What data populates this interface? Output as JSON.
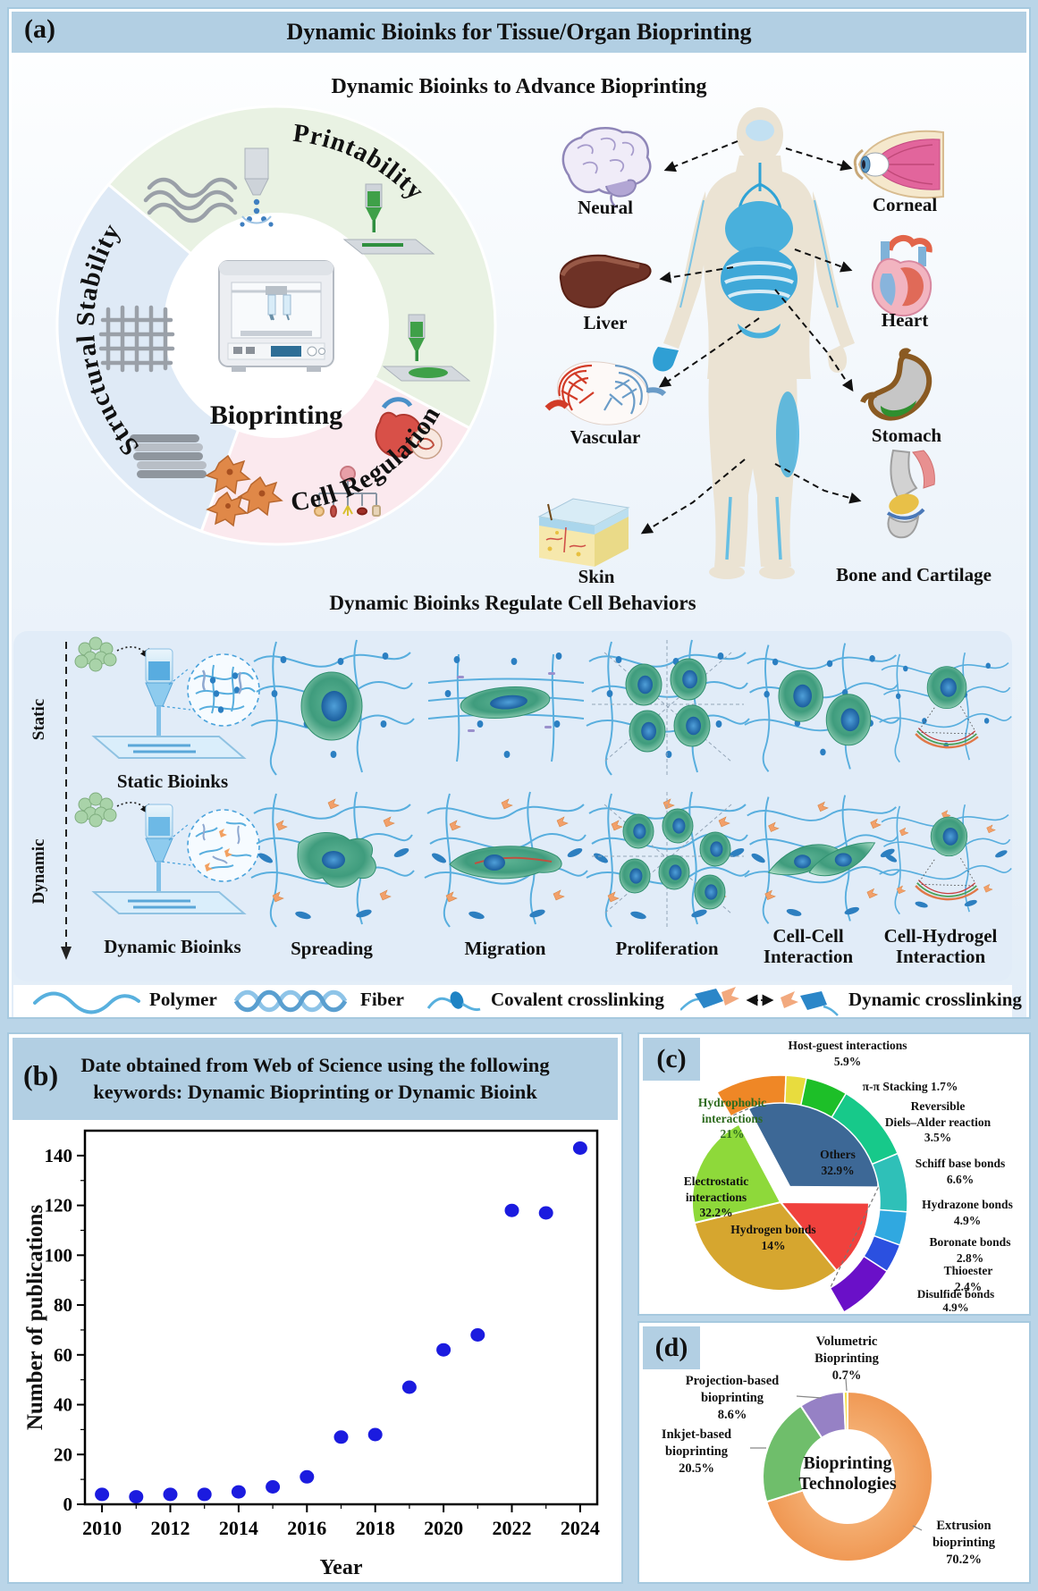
{
  "figure": {
    "bg": "#bad5e8",
    "panel_border": "#a6c9df",
    "header_bg": "#b2cfe3"
  },
  "panel_a": {
    "tag": "(a)",
    "title": "Dynamic Bioinks for Tissue/Organ Bioprinting",
    "subtitle": "Dynamic Bioinks to Advance Bioprinting",
    "wheel": {
      "center": "Bioprinting",
      "sectors": [
        {
          "label": "Printability",
          "color": "#e9f2e3"
        },
        {
          "label": "Cell Regulation",
          "color": "#fbe9ee"
        },
        {
          "label": "Structural Stability",
          "color": "#dfeaf6"
        }
      ]
    },
    "organs_left": [
      "Neural",
      "Liver",
      "Vascular",
      "Skin"
    ],
    "organs_right": [
      "Corneal",
      "Heart",
      "Stomach",
      "Bone and Cartilage"
    ],
    "behaviors": {
      "title": "Dynamic Bioinks Regulate Cell Behaviors",
      "rail": [
        "Static",
        "Dynamic"
      ],
      "ink_labels": [
        "Static Bioinks",
        "Dynamic Bioinks"
      ],
      "columns": [
        "Spreading",
        "Migration",
        "Proliferation",
        "Cell-Cell Interaction",
        "Cell-Hydrogel Interaction"
      ]
    },
    "legend": [
      "Polymer",
      "Fiber",
      "Covalent crosslinking",
      "Dynamic crosslinking"
    ]
  },
  "panel_b": {
    "tag": "(b)",
    "title_line1": "Date obtained from Web of Science using the following",
    "title_line2": "keywords: Dynamic Bioprinting or Dynamic Bioink",
    "ylabel": "Number of publications",
    "xlabel": "Year"
  },
  "panel_c": {
    "tag": "(c)",
    "inner": {
      "others": {
        "name": "Others",
        "pct": "32.9%"
      },
      "hydrogen": {
        "name": "Hydrogen bonds",
        "pct": "14%"
      },
      "electrostatic": {
        "name": "Electrostatic interactions",
        "pct": "32.2%"
      },
      "hydrophobic": {
        "name": "Hydrophobic interactions",
        "pct": "21%"
      }
    },
    "outer": {
      "host_guest": {
        "name": "Host-guest interactions",
        "pct": "5.9%"
      },
      "pi_pi": {
        "name": "π-π Stacking",
        "pct": "1.7%"
      },
      "diels_alder": {
        "line1": "Reversible",
        "line2": "Diels–Alder reaction",
        "pct": "3.5%"
      },
      "schiff": {
        "name": "Schiff base bonds",
        "pct": "6.6%"
      },
      "hydrazone": {
        "name": "Hydrazone bonds",
        "pct": "4.9%"
      },
      "boronate": {
        "name": "Boronate bonds",
        "pct": "2.8%"
      },
      "thioester": {
        "name": "Thioester",
        "pct": "2.4%"
      },
      "disulfide": {
        "name": "Disulfide bonds",
        "pct": "4.9%"
      }
    }
  },
  "panel_d": {
    "tag": "(d)",
    "center_label": "Bioprinting Technologies",
    "labels": {
      "volumetric": {
        "name": "Volumetric Bioprinting",
        "pct": "0.7%"
      },
      "projection": {
        "name": "Projection-based bioprinting",
        "pct": "8.6%"
      },
      "inkjet": {
        "name": "Inkjet-based bioprinting",
        "pct": "20.5%"
      },
      "extrusion": {
        "name": "Extrusion bioprinting",
        "pct": "70.2%"
      }
    }
  },
  "chart_data": [
    {
      "id": "b_publications_scatter",
      "type": "scatter",
      "title": "Date obtained from Web of Science using the following keywords: Dynamic Bioprinting or Dynamic Bioink",
      "xlabel": "Year",
      "ylabel": "Number of publications",
      "x": [
        2010,
        2011,
        2012,
        2013,
        2014,
        2015,
        2016,
        2017,
        2018,
        2019,
        2020,
        2021,
        2022,
        2023,
        2024
      ],
      "y": [
        4,
        3,
        4,
        4,
        5,
        7,
        11,
        27,
        28,
        47,
        62,
        68,
        118,
        117,
        143
      ],
      "xlim": [
        2009.5,
        2024.5
      ],
      "ylim": [
        0,
        150
      ],
      "x_major_ticks": [
        2010,
        2012,
        2014,
        2016,
        2018,
        2020,
        2022,
        2024
      ],
      "y_major_ticks": [
        0,
        20,
        40,
        60,
        80,
        100,
        120,
        140
      ],
      "marker_color": "#1b1bdf",
      "grid": false,
      "legend_position": "none"
    },
    {
      "id": "c_dynamic_interactions_pie",
      "type": "pie",
      "inner_series": [
        {
          "label": "Others",
          "value": 32.9,
          "color": "#3d6896",
          "explode": true
        },
        {
          "label": "Hydrogen bonds",
          "value": 14,
          "color": "#f0413d"
        },
        {
          "label": "Electrostatic interactions",
          "value": 32.2,
          "color": "#d6a62f"
        },
        {
          "label": "Hydrophobic interactions",
          "value": 21,
          "color": "#8ed93a"
        }
      ],
      "outer_breakdown_of_others": [
        {
          "label": "Host-guest interactions",
          "value": 5.9,
          "color": "#ef8726"
        },
        {
          "label": "π-π Stacking",
          "value": 1.7,
          "color": "#e8dc3e"
        },
        {
          "label": "Reversible Diels–Alder reaction",
          "value": 3.5,
          "color": "#1dbf28"
        },
        {
          "label": "Schiff base bonds",
          "value": 6.6,
          "color": "#17c98a"
        },
        {
          "label": "Hydrazone bonds",
          "value": 4.9,
          "color": "#2fc0b8"
        },
        {
          "label": "Boronate bonds",
          "value": 2.8,
          "color": "#30a8e0"
        },
        {
          "label": "Thioester",
          "value": 2.4,
          "color": "#2b50e0"
        },
        {
          "label": "Disulfide bonds",
          "value": 4.9,
          "color": "#6a10c8"
        }
      ]
    },
    {
      "id": "d_bioprinting_technologies_donut",
      "type": "pie",
      "center_label": "Bioprinting Technologies",
      "series": [
        {
          "label": "Extrusion bioprinting",
          "value": 70.2,
          "color": "#f2a266"
        },
        {
          "label": "Inkjet-based bioprinting",
          "value": 20.5,
          "color": "#6fbe6b"
        },
        {
          "label": "Projection-based bioprinting",
          "value": 8.6,
          "color": "#9681c5"
        },
        {
          "label": "Volumetric Bioprinting",
          "value": 0.7,
          "color": "#f2de4e"
        }
      ]
    }
  ]
}
